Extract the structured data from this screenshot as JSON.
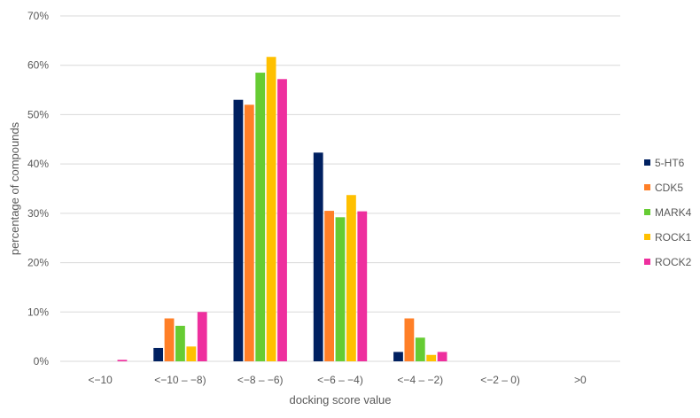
{
  "chart_data": {
    "type": "bar",
    "title": "",
    "xlabel": "docking score value",
    "ylabel": "percentage of compounds",
    "ylim": [
      0,
      70
    ],
    "yticks": [
      "0%",
      "10%",
      "20%",
      "30%",
      "40%",
      "50%",
      "60%",
      "70%"
    ],
    "grid": true,
    "legend_position": "right",
    "categories": [
      "<−10",
      "<−10 – −8)",
      "<−8 – −6)",
      "<−6 – −4)",
      "<−4 – −2)",
      "<−2 – 0)",
      ">0"
    ],
    "series": [
      {
        "name": "5-HT6",
        "color": "#002060",
        "values": [
          0,
          2.7,
          53.0,
          42.3,
          1.9,
          0,
          0
        ]
      },
      {
        "name": "CDK5",
        "color": "#FF7F27",
        "values": [
          0,
          8.7,
          52.0,
          30.5,
          8.7,
          0,
          0
        ]
      },
      {
        "name": "MARK4",
        "color": "#66CC33",
        "values": [
          0,
          7.2,
          58.5,
          29.2,
          4.8,
          0,
          0
        ]
      },
      {
        "name": "ROCK1",
        "color": "#FFC000",
        "values": [
          0,
          3.0,
          61.7,
          33.7,
          1.3,
          0,
          0
        ]
      },
      {
        "name": "ROCK2",
        "color": "#EE2F9E",
        "values": [
          0.3,
          10.0,
          57.2,
          30.4,
          1.9,
          0,
          0
        ]
      }
    ]
  }
}
